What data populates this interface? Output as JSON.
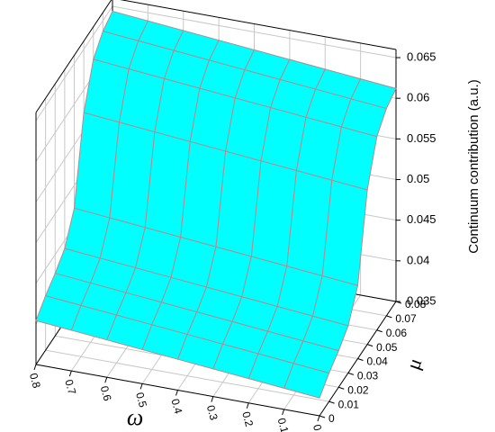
{
  "chart_data": {
    "type": "surface3d",
    "x_label": "ω",
    "y_label": "μ",
    "z_label": "Continuum contribution (a.u.)",
    "x": [
      0,
      0.1,
      0.2,
      0.3,
      0.4,
      0.5,
      0.6,
      0.7,
      0.8
    ],
    "y": [
      0,
      0.01,
      0.02,
      0.03,
      0.04,
      0.05,
      0.06,
      0.07,
      0.08
    ],
    "z": [
      [
        0.0372,
        0.0376,
        0.038,
        0.0384,
        0.0388,
        0.0392,
        0.0396,
        0.04,
        0.0404
      ],
      [
        0.0385,
        0.0389,
        0.0393,
        0.0397,
        0.0401,
        0.0405,
        0.0409,
        0.0413,
        0.0417
      ],
      [
        0.0395,
        0.0399,
        0.0403,
        0.0407,
        0.0411,
        0.0415,
        0.0419,
        0.0423,
        0.0427
      ],
      [
        0.0408,
        0.0412,
        0.0416,
        0.042,
        0.0424,
        0.0428,
        0.0432,
        0.0436,
        0.044
      ],
      [
        0.044,
        0.0444,
        0.0448,
        0.0452,
        0.0456,
        0.046,
        0.0464,
        0.0468,
        0.0472
      ],
      [
        0.054,
        0.0544,
        0.0548,
        0.0552,
        0.0556,
        0.056,
        0.0564,
        0.0568,
        0.0572
      ],
      [
        0.0588,
        0.0592,
        0.0596,
        0.06,
        0.0604,
        0.0608,
        0.0612,
        0.0616,
        0.062
      ],
      [
        0.0605,
        0.0609,
        0.0613,
        0.0617,
        0.0621,
        0.0625,
        0.0629,
        0.0633,
        0.0637
      ],
      [
        0.0612,
        0.0616,
        0.062,
        0.0624,
        0.0628,
        0.0632,
        0.0636,
        0.064,
        0.0644
      ]
    ],
    "xlim": [
      0,
      0.8
    ],
    "ylim": [
      0,
      0.08
    ],
    "zlim": [
      0.035,
      0.066
    ],
    "xticks": [
      0.8,
      0.7,
      0.6,
      0.5,
      0.4,
      0.3,
      0.2,
      0.1,
      0
    ],
    "yticks": [
      0,
      0.01,
      0.02,
      0.03,
      0.04,
      0.05,
      0.06,
      0.07,
      0.08
    ],
    "zticks": [
      0.035,
      0.04,
      0.045,
      0.05,
      0.055,
      0.06,
      0.065
    ],
    "color": "#00ffff",
    "edge_color": "#b58c8c",
    "grid": true
  }
}
